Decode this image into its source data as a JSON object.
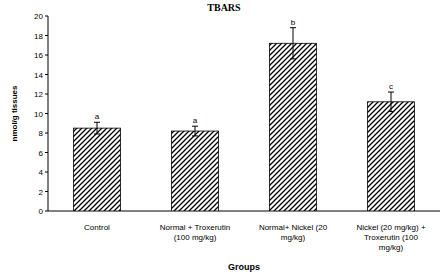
{
  "chart_data": {
    "type": "bar",
    "title": "TBARS",
    "x_label": "Groups",
    "y_label": "nmol/g tissues",
    "categories": [
      "Control",
      "Normal + Troxerutin (100 mg/kg)",
      "Normal+ Nickel (20 mg/kg)",
      "Nickel (20 mg/kg) + Troxerutin (100 mg/kg)"
    ],
    "values": [
      8.5,
      8.2,
      17.2,
      11.2
    ],
    "errors": [
      0.6,
      0.5,
      1.6,
      1.0
    ],
    "annotations": [
      "a",
      "a",
      "b",
      "c"
    ],
    "color": "#000000",
    "ylim": [
      0,
      20
    ],
    "yticks": [
      0,
      2,
      4,
      6,
      8,
      10,
      12,
      14,
      16,
      18,
      20
    ],
    "grid": false
  }
}
